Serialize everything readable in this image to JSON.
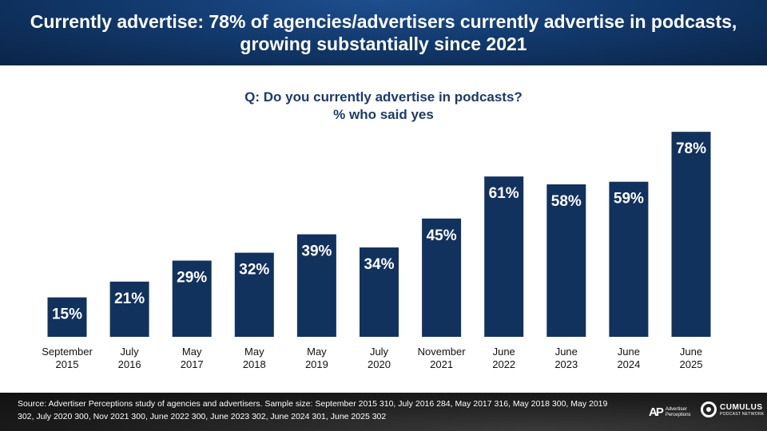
{
  "header": {
    "title": "Currently advertise: 78% of agencies/advertisers currently advertise in podcasts, growing substantially since 2021"
  },
  "chart_data": {
    "type": "bar",
    "title": "Q: Do you currently advertise in podcasts?",
    "subtitle": "% who said yes",
    "categories": [
      [
        "September",
        "2015"
      ],
      [
        "July",
        "2016"
      ],
      [
        "May",
        "2017"
      ],
      [
        "May",
        "2018"
      ],
      [
        "May",
        "2019"
      ],
      [
        "July",
        "2020"
      ],
      [
        "November",
        "2021"
      ],
      [
        "June",
        "2022"
      ],
      [
        "June",
        "2023"
      ],
      [
        "June",
        "2024"
      ],
      [
        "June",
        "2025"
      ]
    ],
    "values": [
      15,
      21,
      29,
      32,
      39,
      34,
      45,
      61,
      58,
      59,
      78
    ],
    "value_labels": [
      "15%",
      "21%",
      "29%",
      "32%",
      "39%",
      "34%",
      "45%",
      "61%",
      "58%",
      "59%",
      "78%"
    ],
    "value_unit": "%",
    "ylim": [
      0,
      100
    ],
    "grid": false,
    "bar_color": "#12325e"
  },
  "footer": {
    "source": "Source: Advertiser Perceptions study of agencies and advertisers. Sample size: September 2015 310, July 2016 284, May 2017 316, May 2018 300, May 2019 302, July 2020 300, Nov 2021 300, June 2022 300, June 2023 302, June 2024 301, June 2025 302",
    "logo_ap_mark": "AP",
    "logo_ap_text": "Advertiser Perceptions",
    "logo_cumulus_name": "CUMULUS",
    "logo_cumulus_sub": "PODCAST NETWORK"
  }
}
